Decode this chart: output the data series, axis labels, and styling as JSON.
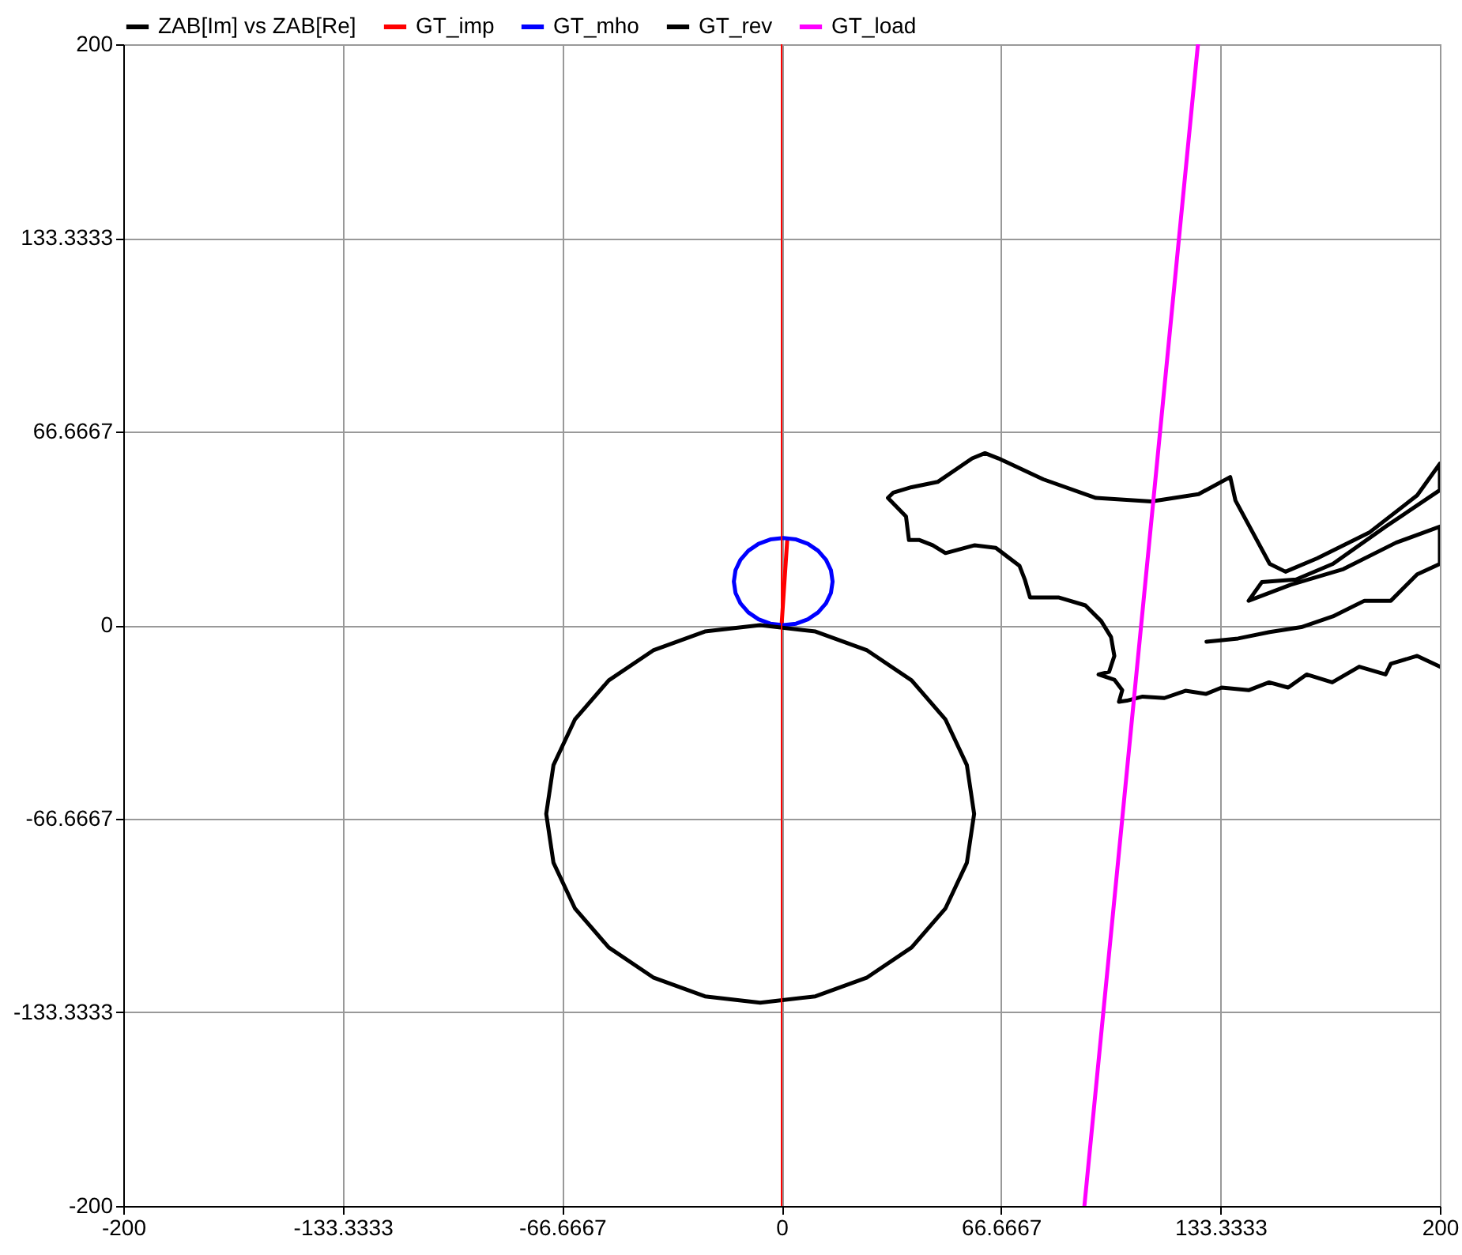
{
  "chart_data": {
    "type": "line",
    "legend": "top",
    "grid": true,
    "xlim": [
      -200,
      200
    ],
    "ylim": [
      -200,
      200
    ],
    "xticks": [
      -200,
      -133.3333,
      -66.6667,
      0,
      66.6667,
      133.3333,
      200
    ],
    "yticks": [
      -200,
      -133.3333,
      -66.6667,
      0,
      66.6667,
      133.3333,
      200
    ],
    "ref_lines": [
      {
        "axis": "x",
        "value": 0,
        "color": "#ff0000"
      }
    ],
    "series": [
      {
        "name": "ZAB[Im] vs ZAB[Re]",
        "color": "#000000",
        "x": [
          200,
          193.1,
          185.1,
          183.5,
          175.5,
          167.3,
          159.5,
          153.9,
          148.1,
          141.9,
          133.7,
          128.9,
          122.7,
          116.3,
          109.7,
          104.9,
          102.5,
          103.5,
          101.1,
          96.3,
          99.5,
          101.1,
          100.1,
          97.1,
          92.3,
          84.3,
          75.5,
          73.9,
          72.3,
          65.1,
          58.7,
          49.8,
          45.9,
          41.9,
          38.7,
          37.8,
          35.4,
          32.3,
          33.9,
          39.5,
          47.4,
          57.9,
          61.8,
          65.9,
          79.5,
          95.5,
          112.3,
          126.7,
          136.3,
          137.9,
          148.3,
          153.1,
          162.7,
          178.7,
          193.1,
          200,
          200,
          183.5,
          167.5,
          156.3,
          145.9,
          141.9,
          154.7,
          170.7,
          186.7,
          200,
          200,
          193.1,
          185.1,
          177.1,
          167.5,
          157.9,
          148.3,
          138.7,
          129.1
        ],
        "values": [
          -14.3,
          -10.6,
          -13.3,
          -17.0,
          -14.3,
          -19.7,
          -17.0,
          -21.5,
          -19.7,
          -22.4,
          -21.5,
          -23.7,
          -22.6,
          -25.1,
          -24.6,
          -26.0,
          -26.4,
          -22.4,
          -18.8,
          -17.0,
          -16.1,
          -10.6,
          -4.1,
          1.4,
          6.8,
          9.5,
          9.5,
          15.7,
          20.4,
          26.6,
          27.5,
          24.8,
          27.5,
          29.3,
          29.3,
          37.4,
          40.2,
          43.8,
          45.6,
          47.5,
          49.3,
          57.4,
          59.2,
          57.4,
          50.2,
          43.8,
          42.6,
          45.1,
          51.0,
          42.9,
          21.1,
          18.4,
          23.0,
          32.0,
          44.7,
          55.6,
          46.5,
          33.9,
          21.1,
          15.7,
          14.8,
          8.4,
          13.9,
          19.3,
          28.4,
          33.9,
          21.1,
          17.5,
          8.4,
          8.4,
          3.0,
          -0.7,
          -2.4,
          -4.6,
          -5.7
        ]
      },
      {
        "name": "GT_imp",
        "color": "#ff0000",
        "x": [
          0,
          1.7
        ],
        "values": [
          0,
          29
        ]
      },
      {
        "name": "GT_mho",
        "color": "#0000ff",
        "x": [
          15.5,
          15.0,
          13.5,
          11.1,
          8.0,
          4.4,
          0.5,
          -3.4,
          -7.0,
          -10.1,
          -12.5,
          -14.0,
          -14.5,
          -14.0,
          -12.5,
          -10.1,
          -7.0,
          -3.4,
          0.5,
          4.4,
          8.0,
          11.1,
          13.5,
          15.0,
          15.5,
          15.0
        ],
        "values": [
          15,
          18.9,
          22.5,
          25.6,
          28.0,
          29.5,
          30,
          29.5,
          28.0,
          25.6,
          22.5,
          18.9,
          15,
          11.1,
          7.5,
          4.4,
          2.0,
          0.5,
          0,
          0.5,
          2.0,
          4.4,
          7.5,
          11.1,
          15,
          18.9
        ]
      },
      {
        "name": "GT_rev",
        "color": "#000000",
        "x": [
          58.5,
          56.3,
          49.8,
          39.5,
          26.0,
          10.3,
          -6.5,
          -23.3,
          -39.0,
          -52.5,
          -62.8,
          -69.3,
          -71.5,
          -69.3,
          -62.8,
          -52.5,
          -39.0,
          -23.3,
          -6.5,
          10.3,
          26.0,
          39.5,
          49.8,
          56.3,
          58.5,
          56.3
        ],
        "values": [
          -65,
          -48.2,
          -32.5,
          -19.0,
          -8.7,
          -2.2,
          0,
          -2.2,
          -8.7,
          -19.0,
          -32.5,
          -48.2,
          -65,
          -81.8,
          -97.5,
          -111.0,
          -121.3,
          -127.8,
          -130,
          -127.8,
          -121.3,
          -111.0,
          -97.5,
          -81.8,
          -65,
          -48.2
        ]
      },
      {
        "name": "GT_load",
        "color": "#ff00ff",
        "x": [
          92.0,
          126.5
        ],
        "values": [
          -200,
          200
        ]
      }
    ]
  }
}
